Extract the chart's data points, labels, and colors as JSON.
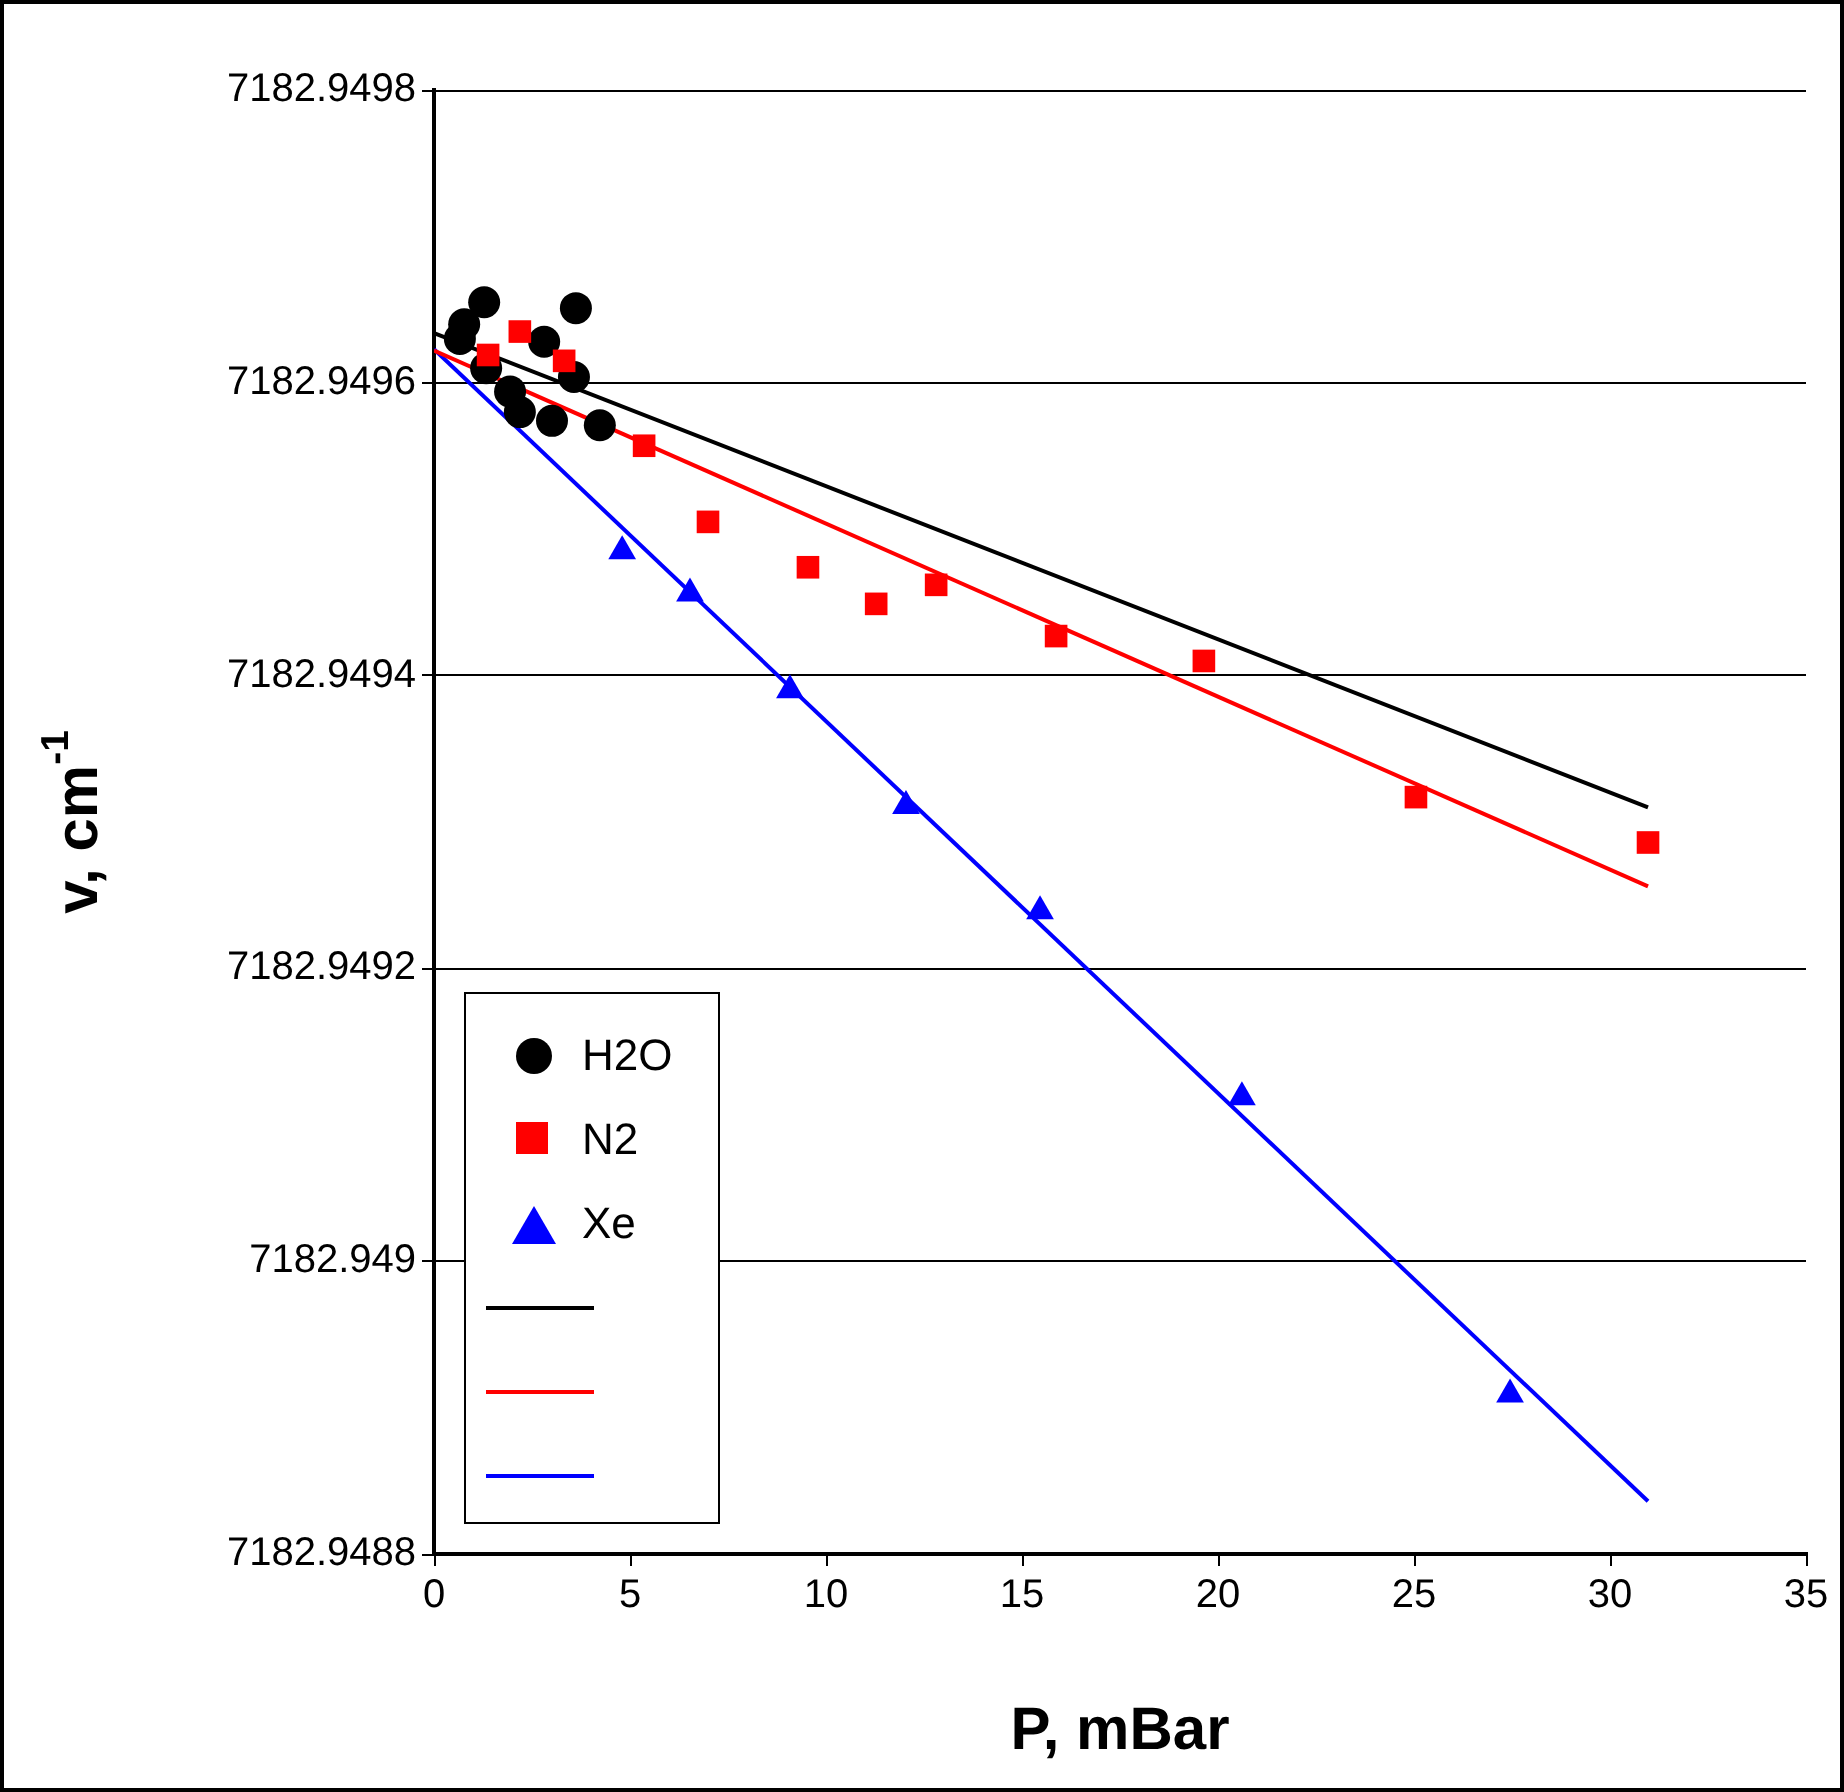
{
  "chart_data": {
    "type": "scatter",
    "xlabel": "P, mBar",
    "ylabel": "v, cm$^{-1}$",
    "xlim": [
      0,
      35
    ],
    "xticks": [
      0,
      5,
      10,
      15,
      20,
      25,
      30,
      35
    ],
    "ylim": [
      7182.9488,
      7182.9498
    ],
    "yticks": [
      7182.9488,
      7182.949,
      7182.9492,
      7182.9494,
      7182.9496,
      7182.9498
    ],
    "grid": "y",
    "legend": "bottom left",
    "series": [
      {
        "name": "H2O",
        "type": "scatter",
        "marker": "circle",
        "color": "#000000",
        "x": [
          0.66,
          0.77,
          1.28,
          1.33,
          1.94,
          2.19,
          2.81,
          3.01,
          3.62,
          3.57,
          4.23
        ],
        "values": [
          7182.94963,
          7182.94964,
          7182.949655,
          7182.94961,
          7182.949594,
          7182.94958,
          7182.949628,
          7182.949574,
          7182.949651,
          7182.949604,
          7182.949571
        ]
      },
      {
        "name": "N2",
        "type": "scatter",
        "marker": "square",
        "color": "#ff0000",
        "x": [
          1.38,
          2.19,
          3.32,
          5.36,
          6.99,
          9.54,
          11.28,
          12.81,
          15.87,
          19.64,
          25.05,
          30.97
        ],
        "values": [
          7182.949619,
          7182.949635,
          7182.949615,
          7182.949557,
          7182.949505,
          7182.949474,
          7182.949449,
          7182.949462,
          7182.949427,
          7182.94941,
          7182.949317,
          7182.949286
        ]
      },
      {
        "name": "Xe",
        "type": "scatter",
        "marker": "triangle",
        "color": "#0000ff",
        "x": [
          4.8,
          6.53,
          9.08,
          12.04,
          15.46,
          20.61,
          27.45
        ],
        "values": [
          7182.949485,
          7182.949456,
          7182.94939,
          7182.949311,
          7182.949239,
          7182.949112,
          7182.948909
        ]
      },
      {
        "type": "line",
        "marker": "none",
        "color": "#000000",
        "x": [
          0,
          30.97
        ],
        "values": [
          7182.949634,
          7182.94931
        ]
      },
      {
        "type": "line",
        "marker": "none",
        "color": "#ff0000",
        "x": [
          0,
          30.97
        ],
        "values": [
          7182.949622,
          7182.949256
        ]
      },
      {
        "type": "line",
        "marker": "none",
        "color": "#0000ff",
        "x": [
          0,
          30.97
        ],
        "values": [
          7182.949623,
          7182.948836
        ]
      }
    ]
  }
}
